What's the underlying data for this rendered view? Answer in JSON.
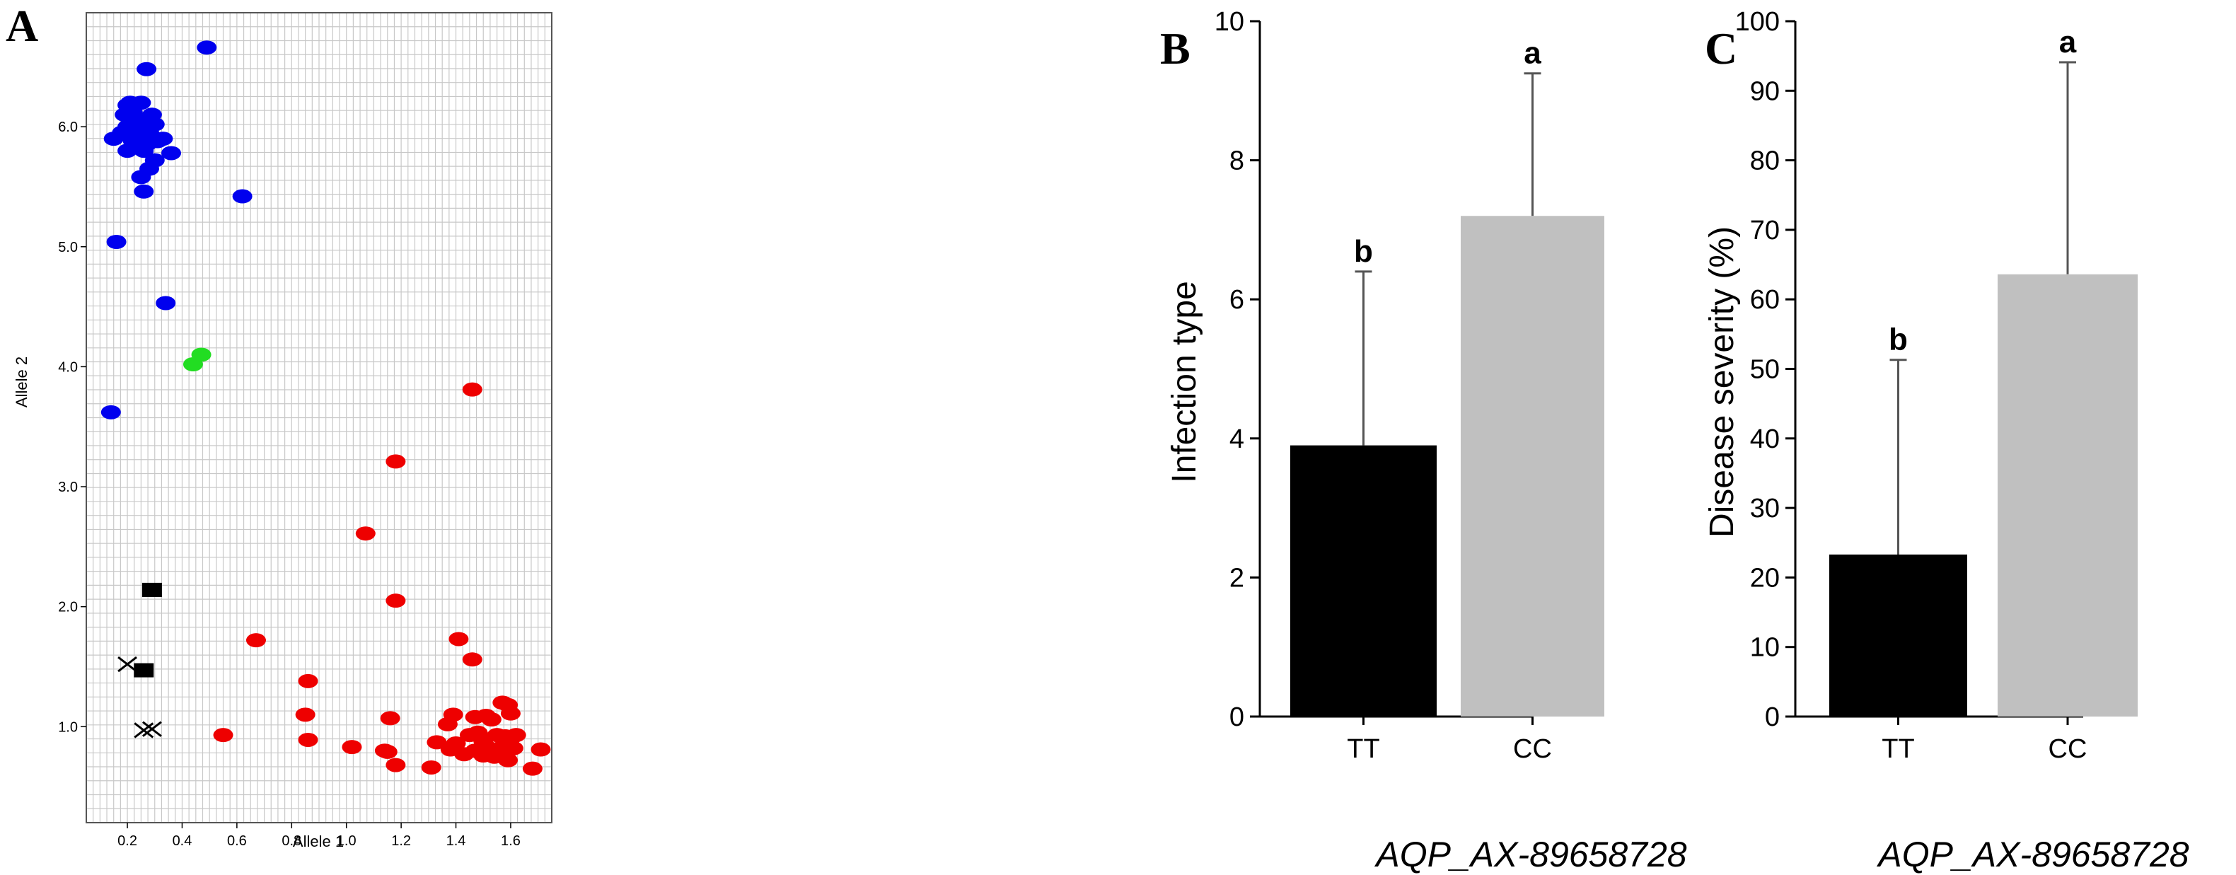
{
  "chart_data": [
    {
      "id": "A",
      "type": "scatter",
      "panel_label": "A",
      "xlabel": "Allele 1",
      "ylabel": "Allele 2",
      "xlim": [
        0.05,
        1.75
      ],
      "ylim": [
        0.2,
        6.95
      ],
      "grid": true,
      "x_ticks": [
        "0.2",
        "0.4",
        "0.6",
        "0.8",
        "1.0",
        "1.2",
        "1.4",
        "1.6"
      ],
      "y_ticks": [
        "1.0",
        "2.0",
        "3.0",
        "4.0",
        "5.0",
        "6.0"
      ],
      "series": [
        {
          "name": "blue cluster",
          "color": "#0000ee",
          "marker": "ellipse",
          "points": [
            [
              0.27,
              6.48
            ],
            [
              0.49,
              6.66
            ],
            [
              0.2,
              6.18
            ],
            [
              0.21,
              6.2
            ],
            [
              0.19,
              6.1
            ],
            [
              0.25,
              6.2
            ],
            [
              0.22,
              6.12
            ],
            [
              0.29,
              6.1
            ],
            [
              0.24,
              6.05
            ],
            [
              0.2,
              6.0
            ],
            [
              0.23,
              6.0
            ],
            [
              0.27,
              6.02
            ],
            [
              0.3,
              6.02
            ],
            [
              0.18,
              5.95
            ],
            [
              0.25,
              5.95
            ],
            [
              0.28,
              5.95
            ],
            [
              0.15,
              5.9
            ],
            [
              0.22,
              5.88
            ],
            [
              0.31,
              5.88
            ],
            [
              0.33,
              5.9
            ],
            [
              0.27,
              5.85
            ],
            [
              0.2,
              5.8
            ],
            [
              0.26,
              5.8
            ],
            [
              0.36,
              5.78
            ],
            [
              0.3,
              5.72
            ],
            [
              0.28,
              5.65
            ],
            [
              0.25,
              5.58
            ],
            [
              0.26,
              5.46
            ],
            [
              0.62,
              5.42
            ],
            [
              0.16,
              5.04
            ],
            [
              0.34,
              4.53
            ],
            [
              0.14,
              3.62
            ]
          ]
        },
        {
          "name": "green cluster",
          "color": "#22dd22",
          "marker": "ellipse",
          "points": [
            [
              0.44,
              4.02
            ],
            [
              0.47,
              4.1
            ]
          ]
        },
        {
          "name": "red cluster",
          "color": "#ee0000",
          "marker": "ellipse",
          "points": [
            [
              1.46,
              3.81
            ],
            [
              1.18,
              3.21
            ],
            [
              1.07,
              2.61
            ],
            [
              1.18,
              2.05
            ],
            [
              1.41,
              1.73
            ],
            [
              0.67,
              1.72
            ],
            [
              1.46,
              1.56
            ],
            [
              0.86,
              1.38
            ],
            [
              1.57,
              1.2
            ],
            [
              1.59,
              1.18
            ],
            [
              1.39,
              1.1
            ],
            [
              1.47,
              1.08
            ],
            [
              0.85,
              1.1
            ],
            [
              1.16,
              1.07
            ],
            [
              1.51,
              1.09
            ],
            [
              1.53,
              1.06
            ],
            [
              1.6,
              1.11
            ],
            [
              1.37,
              1.02
            ],
            [
              0.55,
              0.93
            ],
            [
              1.45,
              0.93
            ],
            [
              1.48,
              0.95
            ],
            [
              1.55,
              0.93
            ],
            [
              1.58,
              0.92
            ],
            [
              1.62,
              0.93
            ],
            [
              0.86,
              0.89
            ],
            [
              1.33,
              0.87
            ],
            [
              1.4,
              0.86
            ],
            [
              1.5,
              0.88
            ],
            [
              1.6,
              0.9
            ],
            [
              1.02,
              0.83
            ],
            [
              1.38,
              0.81
            ],
            [
              1.47,
              0.8
            ],
            [
              1.52,
              0.82
            ],
            [
              1.55,
              0.8
            ],
            [
              1.57,
              0.83
            ],
            [
              1.61,
              0.82
            ],
            [
              1.71,
              0.81
            ],
            [
              1.14,
              0.8
            ],
            [
              1.15,
              0.79
            ],
            [
              1.43,
              0.77
            ],
            [
              1.5,
              0.76
            ],
            [
              1.54,
              0.75
            ],
            [
              1.59,
              0.72
            ],
            [
              1.18,
              0.68
            ],
            [
              1.31,
              0.66
            ],
            [
              1.68,
              0.65
            ]
          ]
        },
        {
          "name": "black squares",
          "color": "#000000",
          "marker": "square",
          "points": [
            [
              0.29,
              2.14
            ],
            [
              0.26,
              1.47
            ]
          ]
        },
        {
          "name": "black crosses",
          "color": "#000000",
          "marker": "x",
          "points": [
            [
              0.2,
              1.52
            ],
            [
              0.26,
              0.97
            ],
            [
              0.29,
              0.98
            ]
          ]
        }
      ]
    },
    {
      "id": "B",
      "type": "bar",
      "panel_label": "B",
      "ylabel": "Infection type",
      "xlabel": "AQP_AX-89658728",
      "ylim": [
        0,
        10
      ],
      "y_ticks": [
        "0",
        "2",
        "4",
        "6",
        "8",
        "10"
      ],
      "categories": [
        "TT",
        "CC"
      ],
      "values": [
        3.9,
        7.2
      ],
      "error": [
        2.5,
        2.05
      ],
      "colors": [
        "#000000",
        "#c0c0c0"
      ],
      "significance": [
        "b",
        "a"
      ]
    },
    {
      "id": "C",
      "type": "bar",
      "panel_label": "C",
      "ylabel": "Disease severity (%)",
      "xlabel": "AQP_AX-89658728",
      "ylim": [
        0,
        100
      ],
      "y_ticks": [
        "0",
        "10",
        "20",
        "30",
        "40",
        "50",
        "60",
        "70",
        "80",
        "90",
        "100"
      ],
      "categories": [
        "TT",
        "CC"
      ],
      "values": [
        23.3,
        63.6
      ],
      "error": [
        28.0,
        30.5
      ],
      "colors": [
        "#000000",
        "#c0c0c0"
      ],
      "significance": [
        "b",
        "a"
      ]
    }
  ]
}
